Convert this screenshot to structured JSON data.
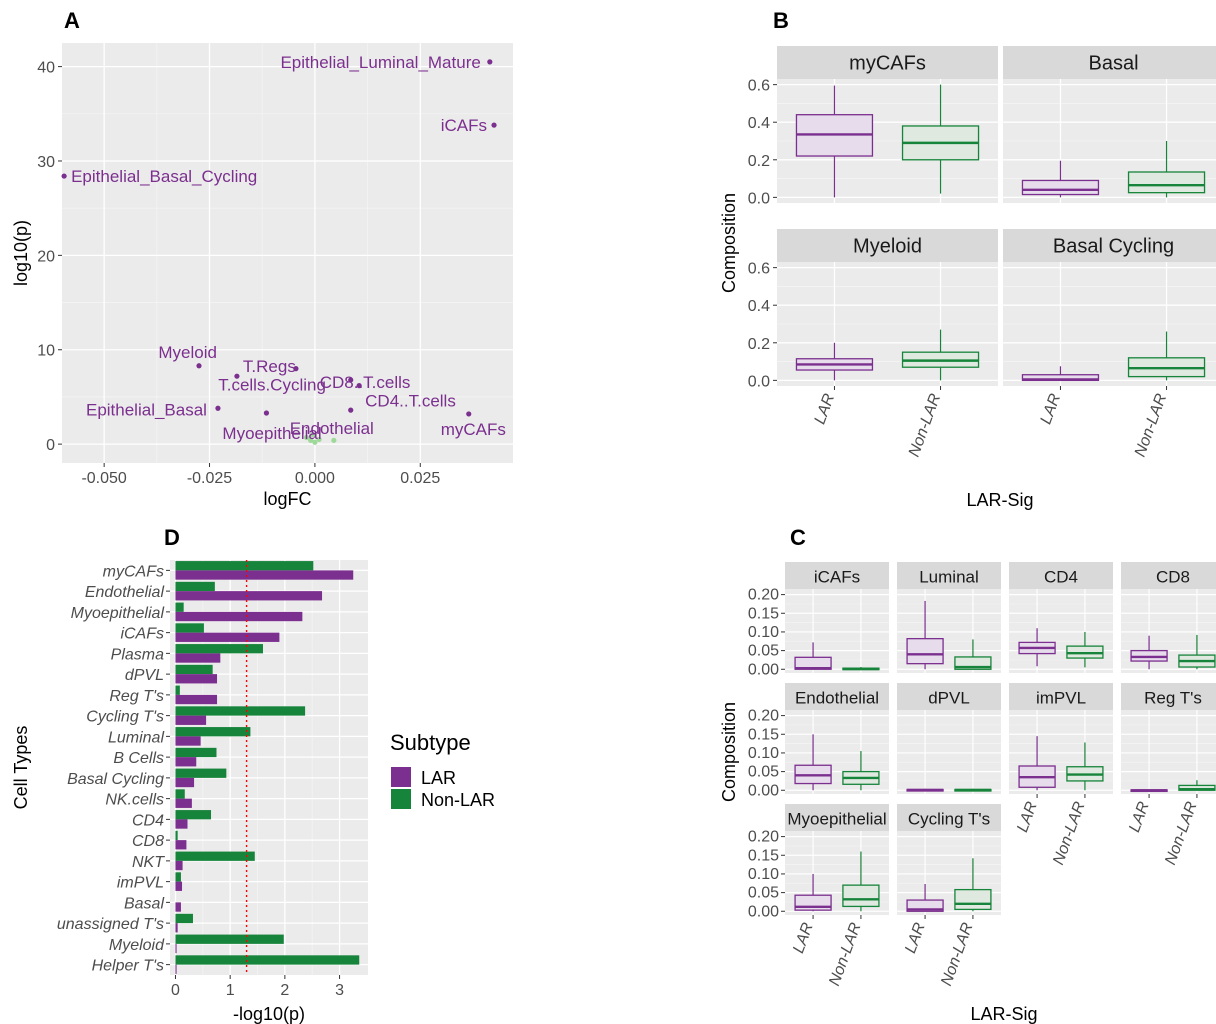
{
  "colors": {
    "lar": "#7b2f8e",
    "nonlar": "#16843a",
    "lar_fill": "#e6dceb",
    "nonlar_fill": "#dfe9df",
    "light_green": "#9ed99a",
    "panel": "#ebebeb",
    "strip": "#d9d9d9",
    "threshold": "#ff0000"
  },
  "chart_data": [
    {
      "panel": "A",
      "type": "scatter",
      "xlabel": "logFC",
      "ylabel": "log10(p)",
      "xlim": [
        -0.06,
        0.047
      ],
      "ylim": [
        -2,
        42.5
      ],
      "xticks": [
        -0.05,
        -0.025,
        0.0,
        0.025
      ],
      "xtick_labels": [
        "-0.050",
        "-0.025",
        "0.000",
        "0.025"
      ],
      "yticks": [
        0,
        10,
        20,
        30,
        40
      ],
      "points": [
        {
          "label": "Epithelial_Luminal_Mature",
          "x": 0.0415,
          "y": 40.5
        },
        {
          "label": "iCAFs",
          "x": 0.0425,
          "y": 33.8
        },
        {
          "label": "Epithelial_Basal_Cycling",
          "x": -0.0595,
          "y": 28.4
        },
        {
          "label": "Myeloid",
          "x": -0.0275,
          "y": 8.3
        },
        {
          "label": "T.Regs",
          "x": -0.0185,
          "y": 7.2
        },
        {
          "label": "CD8..T.cells",
          "x": 0.0085,
          "y": 6.8
        },
        {
          "label": "T.cells.Cycling",
          "x": -0.0045,
          "y": 8.0
        },
        {
          "label": "CD4..T.cells",
          "x": 0.0105,
          "y": 6.2
        },
        {
          "label": "Epithelial_Basal",
          "x": -0.023,
          "y": 3.8
        },
        {
          "label": "Myoepithelial",
          "x": -0.0115,
          "y": 3.3
        },
        {
          "label": "Endothelial",
          "x": 0.0085,
          "y": 3.6
        },
        {
          "label": "myCAFs",
          "x": 0.0365,
          "y": 3.2
        }
      ],
      "nonsig_points": [
        {
          "x": -0.002,
          "y": 0.7
        },
        {
          "x": -0.001,
          "y": 0.4
        },
        {
          "x": 0.0,
          "y": 0.2
        },
        {
          "x": 0.001,
          "y": 0.5
        },
        {
          "x": 0.0045,
          "y": 0.4
        },
        {
          "x": -0.0005,
          "y": 1.0
        }
      ]
    },
    {
      "panel": "B",
      "type": "box",
      "xlabel": "LAR-Sig",
      "ylabel": "Composition",
      "ylim": [
        -0.03,
        0.63
      ],
      "yticks": [
        0.0,
        0.2,
        0.4,
        0.6
      ],
      "ytick_labels": [
        "0.0",
        "0.2",
        "0.4",
        "0.6"
      ],
      "groups": [
        "LAR",
        "Non-LAR"
      ],
      "facets": [
        {
          "name": "myCAFs",
          "LAR": [
            0.0,
            0.22,
            0.335,
            0.44,
            0.595
          ],
          "Non-LAR": [
            0.02,
            0.2,
            0.29,
            0.38,
            0.6
          ]
        },
        {
          "name": "Basal",
          "LAR": [
            0.0,
            0.015,
            0.04,
            0.09,
            0.195
          ],
          "Non-LAR": [
            0.0,
            0.025,
            0.065,
            0.135,
            0.3
          ]
        },
        {
          "name": "Myeloid",
          "LAR": [
            0.0,
            0.055,
            0.085,
            0.115,
            0.2
          ],
          "Non-LAR": [
            0.0,
            0.07,
            0.105,
            0.15,
            0.27
          ]
        },
        {
          "name": "Basal Cycling",
          "LAR": [
            0.0,
            0.0,
            0.005,
            0.03,
            0.075
          ],
          "Non-LAR": [
            0.0,
            0.02,
            0.065,
            0.12,
            0.26
          ]
        }
      ]
    },
    {
      "panel": "C",
      "type": "box",
      "xlabel": "LAR-Sig",
      "ylabel": "Composition",
      "ylim": [
        -0.01,
        0.215
      ],
      "yticks": [
        0.0,
        0.05,
        0.1,
        0.15,
        0.2
      ],
      "ytick_labels": [
        "0.00",
        "0.05",
        "0.10",
        "0.15",
        "0.20"
      ],
      "groups": [
        "LAR",
        "Non-LAR"
      ],
      "facets": [
        {
          "name": "iCAFs",
          "LAR": [
            0.0,
            0.0,
            0.003,
            0.032,
            0.072
          ],
          "Non-LAR": [
            0.0,
            0.0,
            0.001,
            0.003,
            0.006
          ]
        },
        {
          "name": "Luminal",
          "LAR": [
            0.0,
            0.015,
            0.04,
            0.082,
            0.183
          ],
          "Non-LAR": [
            0.0,
            0.0,
            0.006,
            0.033,
            0.08
          ]
        },
        {
          "name": "CD4",
          "LAR": [
            0.008,
            0.042,
            0.057,
            0.072,
            0.11
          ],
          "Non-LAR": [
            0.005,
            0.03,
            0.043,
            0.062,
            0.1
          ]
        },
        {
          "name": "CD8",
          "LAR": [
            0.0,
            0.022,
            0.033,
            0.05,
            0.09
          ],
          "Non-LAR": [
            0.0,
            0.006,
            0.022,
            0.038,
            0.092
          ]
        },
        {
          "name": "Endothelial",
          "LAR": [
            0.0,
            0.018,
            0.04,
            0.067,
            0.15
          ],
          "Non-LAR": [
            0.0,
            0.016,
            0.033,
            0.05,
            0.105
          ]
        },
        {
          "name": "dPVL",
          "LAR": [
            0.0,
            0.0,
            0.001,
            0.002,
            0.004
          ],
          "Non-LAR": [
            0.0,
            0.0,
            0.001,
            0.002,
            0.004
          ]
        },
        {
          "name": "imPVL",
          "LAR": [
            0.0,
            0.008,
            0.035,
            0.065,
            0.145
          ],
          "Non-LAR": [
            0.0,
            0.025,
            0.042,
            0.063,
            0.128
          ]
        },
        {
          "name": "Reg T's",
          "LAR": [
            0.0,
            0.0,
            0.0,
            0.001,
            0.002
          ],
          "Non-LAR": [
            0.0,
            0.0,
            0.003,
            0.013,
            0.027
          ]
        },
        {
          "name": "Myoepithelial",
          "LAR": [
            0.0,
            0.003,
            0.012,
            0.043,
            0.1
          ],
          "Non-LAR": [
            0.0,
            0.013,
            0.032,
            0.07,
            0.16
          ]
        },
        {
          "name": "Cycling T's",
          "LAR": [
            0.0,
            0.0,
            0.005,
            0.03,
            0.073
          ],
          "Non-LAR": [
            0.0,
            0.005,
            0.02,
            0.058,
            0.142
          ]
        }
      ]
    },
    {
      "panel": "D",
      "type": "bar",
      "orientation": "horizontal",
      "xlabel": "-log10(p)",
      "ylabel": "Cell Types",
      "xlim": [
        -0.1,
        3.52
      ],
      "xticks": [
        0,
        1,
        2,
        3
      ],
      "threshold": 1.3,
      "legend_title": "Subtype",
      "categories": [
        "myCAFs",
        "Endothelial",
        "Myoepithelial",
        "iCAFs",
        "Plasma",
        "dPVL",
        "Reg T's",
        "Cycling T's",
        "Luminal",
        "B Cells",
        "Basal Cycling",
        "NK.cells",
        "CD4",
        "CD8",
        "NKT",
        "imPVL",
        "Basal",
        "unassigned T's",
        "Myeloid",
        "Helper T's"
      ],
      "series": [
        {
          "name": "LAR",
          "values": [
            3.25,
            2.68,
            2.32,
            1.9,
            0.82,
            0.76,
            0.76,
            0.56,
            0.46,
            0.38,
            0.34,
            0.3,
            0.22,
            0.2,
            0.13,
            0.12,
            0.1,
            0.04,
            0.02,
            0.02
          ]
        },
        {
          "name": "Non-LAR",
          "values": [
            2.52,
            0.72,
            0.15,
            0.52,
            1.6,
            0.68,
            0.08,
            2.37,
            1.37,
            0.75,
            0.93,
            0.17,
            0.65,
            0.04,
            1.45,
            0.1,
            0.0,
            0.32,
            1.98,
            3.36
          ]
        }
      ]
    }
  ]
}
